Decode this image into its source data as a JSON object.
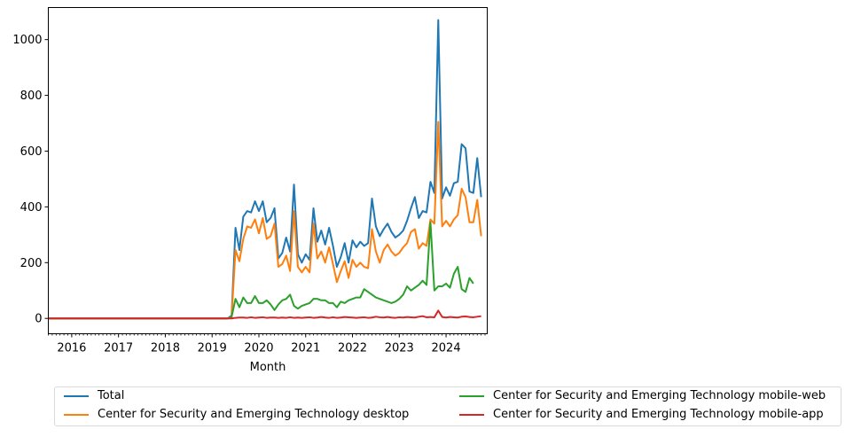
{
  "chart_data": {
    "type": "line",
    "title": "",
    "xlabel": "Month",
    "ylabel": "",
    "ylim": [
      -55,
      1115
    ],
    "xlim": [
      2015.5,
      2024.88
    ],
    "yticks": [
      0,
      200,
      400,
      600,
      800,
      1000
    ],
    "xtick_labels": [
      "2016",
      "2017",
      "2018",
      "2019",
      "2020",
      "2021",
      "2022",
      "2023",
      "2024"
    ],
    "x_start": {
      "year": 2015,
      "month": 7
    },
    "x_end": {
      "year": 2024,
      "month": 11
    },
    "legend_location": "lower center, below the axes, two columns",
    "series": [
      {
        "name": "Total",
        "color": "#1f77b4",
        "values": [
          0,
          0,
          0,
          0,
          0,
          0,
          0,
          0,
          0,
          0,
          0,
          0,
          0,
          0,
          0,
          0,
          0,
          0,
          0,
          0,
          0,
          0,
          0,
          0,
          0,
          0,
          0,
          0,
          0,
          0,
          0,
          0,
          0,
          0,
          0,
          0,
          0,
          0,
          0,
          0,
          0,
          0,
          0,
          0,
          0,
          0,
          0,
          10,
          325,
          245,
          365,
          385,
          380,
          420,
          385,
          420,
          345,
          360,
          395,
          215,
          235,
          290,
          240,
          480,
          230,
          200,
          230,
          210,
          395,
          275,
          315,
          265,
          325,
          260,
          185,
          220,
          270,
          200,
          280,
          255,
          275,
          260,
          270,
          430,
          330,
          295,
          320,
          340,
          310,
          290,
          300,
          315,
          350,
          395,
          435,
          360,
          385,
          380,
          490,
          450,
          1070,
          430,
          470,
          440,
          485,
          490,
          625,
          610,
          455,
          450,
          575,
          435
        ]
      },
      {
        "name": "Center for Security and Emerging Technology desktop",
        "color": "#ff7f0e",
        "values": [
          0,
          0,
          0,
          0,
          0,
          0,
          0,
          0,
          0,
          0,
          0,
          0,
          0,
          0,
          0,
          0,
          0,
          0,
          0,
          0,
          0,
          0,
          0,
          0,
          0,
          0,
          0,
          0,
          0,
          0,
          0,
          0,
          0,
          0,
          0,
          0,
          0,
          0,
          0,
          0,
          0,
          0,
          0,
          0,
          0,
          0,
          0,
          5,
          245,
          205,
          285,
          330,
          325,
          355,
          305,
          360,
          285,
          295,
          340,
          185,
          195,
          225,
          170,
          385,
          185,
          165,
          185,
          165,
          340,
          215,
          240,
          200,
          255,
          195,
          130,
          170,
          205,
          145,
          210,
          185,
          200,
          185,
          180,
          320,
          240,
          200,
          245,
          265,
          240,
          225,
          235,
          255,
          270,
          310,
          320,
          250,
          270,
          260,
          355,
          340,
          705,
          330,
          350,
          330,
          355,
          370,
          465,
          435,
          345,
          345,
          425,
          295
        ]
      },
      {
        "name": "Center for Security and Emerging Technology mobile-web",
        "color": "#2ca02c",
        "values": [
          0,
          0,
          0,
          0,
          0,
          0,
          0,
          0,
          0,
          0,
          0,
          0,
          0,
          0,
          0,
          0,
          0,
          0,
          0,
          0,
          0,
          0,
          0,
          0,
          0,
          0,
          0,
          0,
          0,
          0,
          0,
          0,
          0,
          0,
          0,
          0,
          0,
          0,
          0,
          0,
          0,
          0,
          0,
          0,
          0,
          0,
          0,
          5,
          70,
          40,
          75,
          55,
          55,
          80,
          55,
          55,
          65,
          50,
          30,
          50,
          65,
          70,
          85,
          45,
          35,
          45,
          50,
          55,
          70,
          70,
          65,
          65,
          55,
          55,
          40,
          60,
          55,
          65,
          70,
          75,
          75,
          105,
          95,
          85,
          75,
          70,
          65,
          60,
          55,
          60,
          70,
          85,
          115,
          100,
          110,
          120,
          135,
          120,
          345,
          100,
          115,
          115,
          125,
          110,
          160,
          185,
          105,
          95,
          145,
          125
        ]
      },
      {
        "name": "Center for Security and Emerging Technology mobile-app",
        "color": "#d62728",
        "values": [
          0,
          0,
          0,
          0,
          0,
          0,
          0,
          0,
          0,
          0,
          0,
          0,
          0,
          0,
          0,
          0,
          0,
          0,
          0,
          0,
          0,
          0,
          0,
          0,
          0,
          0,
          0,
          0,
          0,
          0,
          0,
          0,
          0,
          0,
          0,
          0,
          0,
          0,
          0,
          0,
          0,
          0,
          0,
          0,
          0,
          0,
          0,
          0,
          2,
          3,
          3,
          2,
          4,
          2,
          3,
          4,
          2,
          3,
          3,
          2,
          3,
          2,
          4,
          2,
          3,
          2,
          3,
          4,
          2,
          3,
          5,
          3,
          2,
          4,
          2,
          3,
          5,
          4,
          3,
          2,
          3,
          4,
          2,
          3,
          6,
          4,
          3,
          5,
          3,
          2,
          4,
          3,
          5,
          4,
          3,
          6,
          8,
          4,
          5,
          4,
          28,
          5,
          3,
          5,
          4,
          3,
          6,
          7,
          5,
          4,
          6,
          8
        ]
      }
    ]
  }
}
